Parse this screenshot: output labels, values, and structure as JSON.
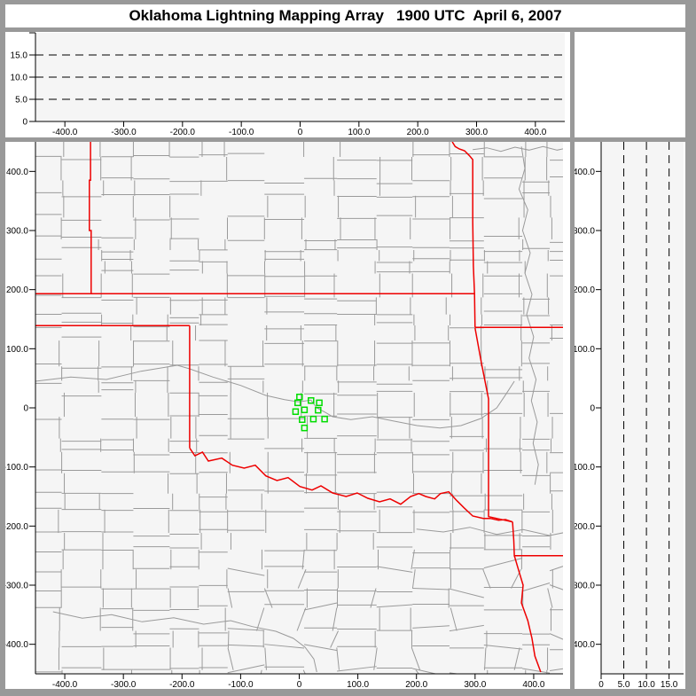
{
  "title": "Oklahoma Lightning Mapping Array   1900 UTC  April 6, 2007",
  "colors": {
    "frame": "#999999",
    "panel_bg": "#ffffff",
    "plot_bg": "#f5f5f5",
    "axis": "#000000",
    "grid": "#000000",
    "county": "#9a9a9a",
    "river": "#9a9a9a",
    "state_border": "#ee0000",
    "station": "#00dd00",
    "text": "#000000"
  },
  "chart_data": [
    {
      "id": "ew_altitude_panel",
      "type": "scatter",
      "title": "",
      "xlim": [
        -450,
        450
      ],
      "ylim": [
        0,
        20
      ],
      "x_ticks": [
        -400,
        -300,
        -200,
        -100,
        0,
        100,
        200,
        300,
        400
      ],
      "x_tick_labels": [
        "-400.0",
        "-300.0",
        "-200.0",
        "-100.0",
        "0",
        "100.0",
        "200.0",
        "300.0",
        "400.0"
      ],
      "y_ticks": [
        0,
        5,
        10,
        15
      ],
      "y_tick_labels": [
        "0",
        "5.0",
        "10.0",
        "15.0"
      ],
      "y_minor_ticks": [
        20
      ],
      "grid_y": [
        5,
        10,
        15
      ],
      "grid_style": "dashed",
      "points": []
    },
    {
      "id": "plan_view_map",
      "type": "scatter",
      "title": "",
      "xlim": [
        -450,
        450
      ],
      "ylim": [
        -450,
        450
      ],
      "x_ticks": [
        -400,
        -300,
        -200,
        -100,
        0,
        100,
        200,
        300,
        400
      ],
      "x_tick_labels": [
        "-400.0",
        "-300.0",
        "-200.0",
        "-100.0",
        "0",
        "100.0",
        "200.0",
        "300.0",
        "400.0"
      ],
      "y_ticks": [
        400,
        300,
        200,
        100,
        0,
        -100,
        -200,
        -300,
        -400
      ],
      "y_tick_labels": [
        "400.0",
        "300.0",
        "200.0",
        "100.0",
        "0",
        "-100.0",
        "-200.0",
        "-300.0",
        "-400.0"
      ],
      "stations": [
        [
          0.5,
          18.4
        ],
        [
          20.1,
          12.4
        ],
        [
          34.2,
          8.5
        ],
        [
          -2.6,
          8.5
        ],
        [
          8.9,
          -3.4
        ],
        [
          -6.2,
          -6.4
        ],
        [
          32.2,
          -4.0
        ],
        [
          5.0,
          -19.9
        ],
        [
          24.1,
          -19.0
        ],
        [
          43.3,
          -19.0
        ],
        [
          8.9,
          -34.0
        ]
      ],
      "state_boundaries": [
        [
          [
            -356,
            450
          ],
          [
            -356,
            385
          ],
          [
            -358,
            385
          ],
          [
            -358,
            300
          ],
          [
            -355,
            300
          ],
          [
            -355,
            193
          ]
        ],
        [
          [
            -450,
            193
          ],
          [
            299,
            193
          ]
        ],
        [
          [
            -450,
            139
          ],
          [
            -187,
            139
          ]
        ],
        [
          [
            -187,
            139
          ],
          [
            -187,
            -68
          ]
        ],
        [
          [
            -187,
            -68
          ],
          [
            -178,
            -81
          ],
          [
            -165,
            -75
          ],
          [
            -155,
            -90
          ],
          [
            -132,
            -85
          ],
          [
            -114,
            -97
          ],
          [
            -94,
            -102
          ],
          [
            -75,
            -97
          ],
          [
            -57,
            -115
          ],
          [
            -38,
            -123
          ],
          [
            -19,
            -118
          ],
          [
            1,
            -133
          ],
          [
            22,
            -139
          ],
          [
            37,
            -132
          ],
          [
            57,
            -144
          ],
          [
            80,
            -150
          ],
          [
            99,
            -144
          ],
          [
            117,
            -153
          ],
          [
            137,
            -159
          ],
          [
            155,
            -154
          ],
          [
            173,
            -163
          ],
          [
            190,
            -150
          ],
          [
            204,
            -145
          ],
          [
            216,
            -150
          ],
          [
            231,
            -154
          ],
          [
            241,
            -145
          ],
          [
            255,
            -142
          ],
          [
            269,
            -157
          ],
          [
            281,
            -169
          ],
          [
            296,
            -183
          ],
          [
            314,
            -187
          ],
          [
            326,
            -187
          ],
          [
            340,
            -190
          ],
          [
            352,
            -189
          ],
          [
            364,
            -193
          ]
        ],
        [
          [
            261,
            450
          ],
          [
            266,
            442
          ],
          [
            273,
            438
          ],
          [
            282,
            435
          ],
          [
            290,
            427
          ],
          [
            296,
            420
          ],
          [
            296,
            315
          ],
          [
            297,
            240
          ],
          [
            299,
            193
          ],
          [
            300,
            136
          ]
        ],
        [
          [
            300,
            136
          ],
          [
            450,
            136
          ]
        ],
        [
          [
            300,
            135
          ],
          [
            311,
            75
          ],
          [
            323,
            15
          ],
          [
            323,
            -184
          ],
          [
            364,
            -193
          ]
        ],
        [
          [
            364,
            -193
          ],
          [
            366,
            -225
          ],
          [
            367,
            -250
          ],
          [
            450,
            -250
          ]
        ],
        [
          [
            367,
            -250
          ],
          [
            375,
            -277
          ],
          [
            382,
            -300
          ],
          [
            379,
            -330
          ],
          [
            390,
            -360
          ],
          [
            397,
            -390
          ],
          [
            402,
            -420
          ],
          [
            412,
            -447
          ]
        ]
      ],
      "rivers": [
        [
          [
            -450,
            45
          ],
          [
            -390,
            52
          ],
          [
            -329,
            48
          ],
          [
            -270,
            62
          ],
          [
            -208,
            72
          ],
          [
            -187,
            66
          ],
          [
            -147,
            52
          ],
          [
            -100,
            38
          ],
          [
            -57,
            21
          ],
          [
            -25,
            14
          ],
          [
            -1,
            10
          ],
          [
            20,
            13
          ],
          [
            30,
            0
          ],
          [
            45,
            -8
          ],
          [
            57,
            -15
          ],
          [
            88,
            -20
          ],
          [
            125,
            -15
          ],
          [
            160,
            -22
          ],
          [
            201,
            -30
          ],
          [
            240,
            -34
          ],
          [
            276,
            -30
          ],
          [
            310,
            -18
          ],
          [
            337,
            0
          ],
          [
            352,
            22
          ],
          [
            367,
            45
          ]
        ],
        [
          [
            379,
            442
          ],
          [
            385,
            405
          ],
          [
            375,
            370
          ],
          [
            390,
            335
          ],
          [
            381,
            300
          ],
          [
            394,
            262
          ],
          [
            385,
            228
          ],
          [
            397,
            192
          ],
          [
            388,
            158
          ],
          [
            400,
            120
          ],
          [
            392,
            84
          ],
          [
            404,
            48
          ],
          [
            396,
            12
          ],
          [
            406,
            -24
          ],
          [
            399,
            -60
          ],
          [
            408,
            -96
          ],
          [
            402,
            -130
          ]
        ],
        [
          [
            200,
            -205
          ],
          [
            246,
            -210
          ],
          [
            291,
            -202
          ],
          [
            337,
            -214
          ],
          [
            382,
            -206
          ],
          [
            427,
            -216
          ],
          [
            457,
            -210
          ]
        ],
        [
          [
            -420,
            -345
          ],
          [
            -370,
            -356
          ],
          [
            -320,
            -350
          ],
          [
            -268,
            -362
          ],
          [
            -214,
            -355
          ],
          [
            -163,
            -366
          ],
          [
            -117,
            -360
          ],
          [
            -80,
            -370
          ],
          [
            -40,
            -378
          ],
          [
            -10,
            -390
          ],
          [
            10,
            -405
          ],
          [
            25,
            -425
          ],
          [
            30,
            -447
          ]
        ],
        [
          [
            296,
            437
          ],
          [
            320,
            440
          ],
          [
            344,
            434
          ],
          [
            368,
            441
          ],
          [
            392,
            436
          ],
          [
            416,
            442
          ],
          [
            440,
            436
          ],
          [
            458,
            440
          ]
        ]
      ]
    },
    {
      "id": "ns_altitude_panel",
      "type": "scatter",
      "title": "",
      "xlim": [
        0,
        18.2
      ],
      "ylim": [
        -450,
        450
      ],
      "x_ticks": [
        0,
        5,
        10,
        15
      ],
      "x_tick_labels": [
        "0",
        "5.0",
        "10.0",
        "15.0"
      ],
      "y_ticks": [
        400,
        300,
        200,
        100,
        0,
        -100,
        -200,
        -300,
        -400
      ],
      "y_tick_labels": [
        "400.0",
        "300.0",
        "200.0",
        "100.0",
        "0",
        "-100.0",
        "-200.0",
        "-300.0",
        "-400.0"
      ],
      "grid_x": [
        5,
        10,
        15
      ],
      "grid_style": "dashed",
      "points": []
    }
  ]
}
